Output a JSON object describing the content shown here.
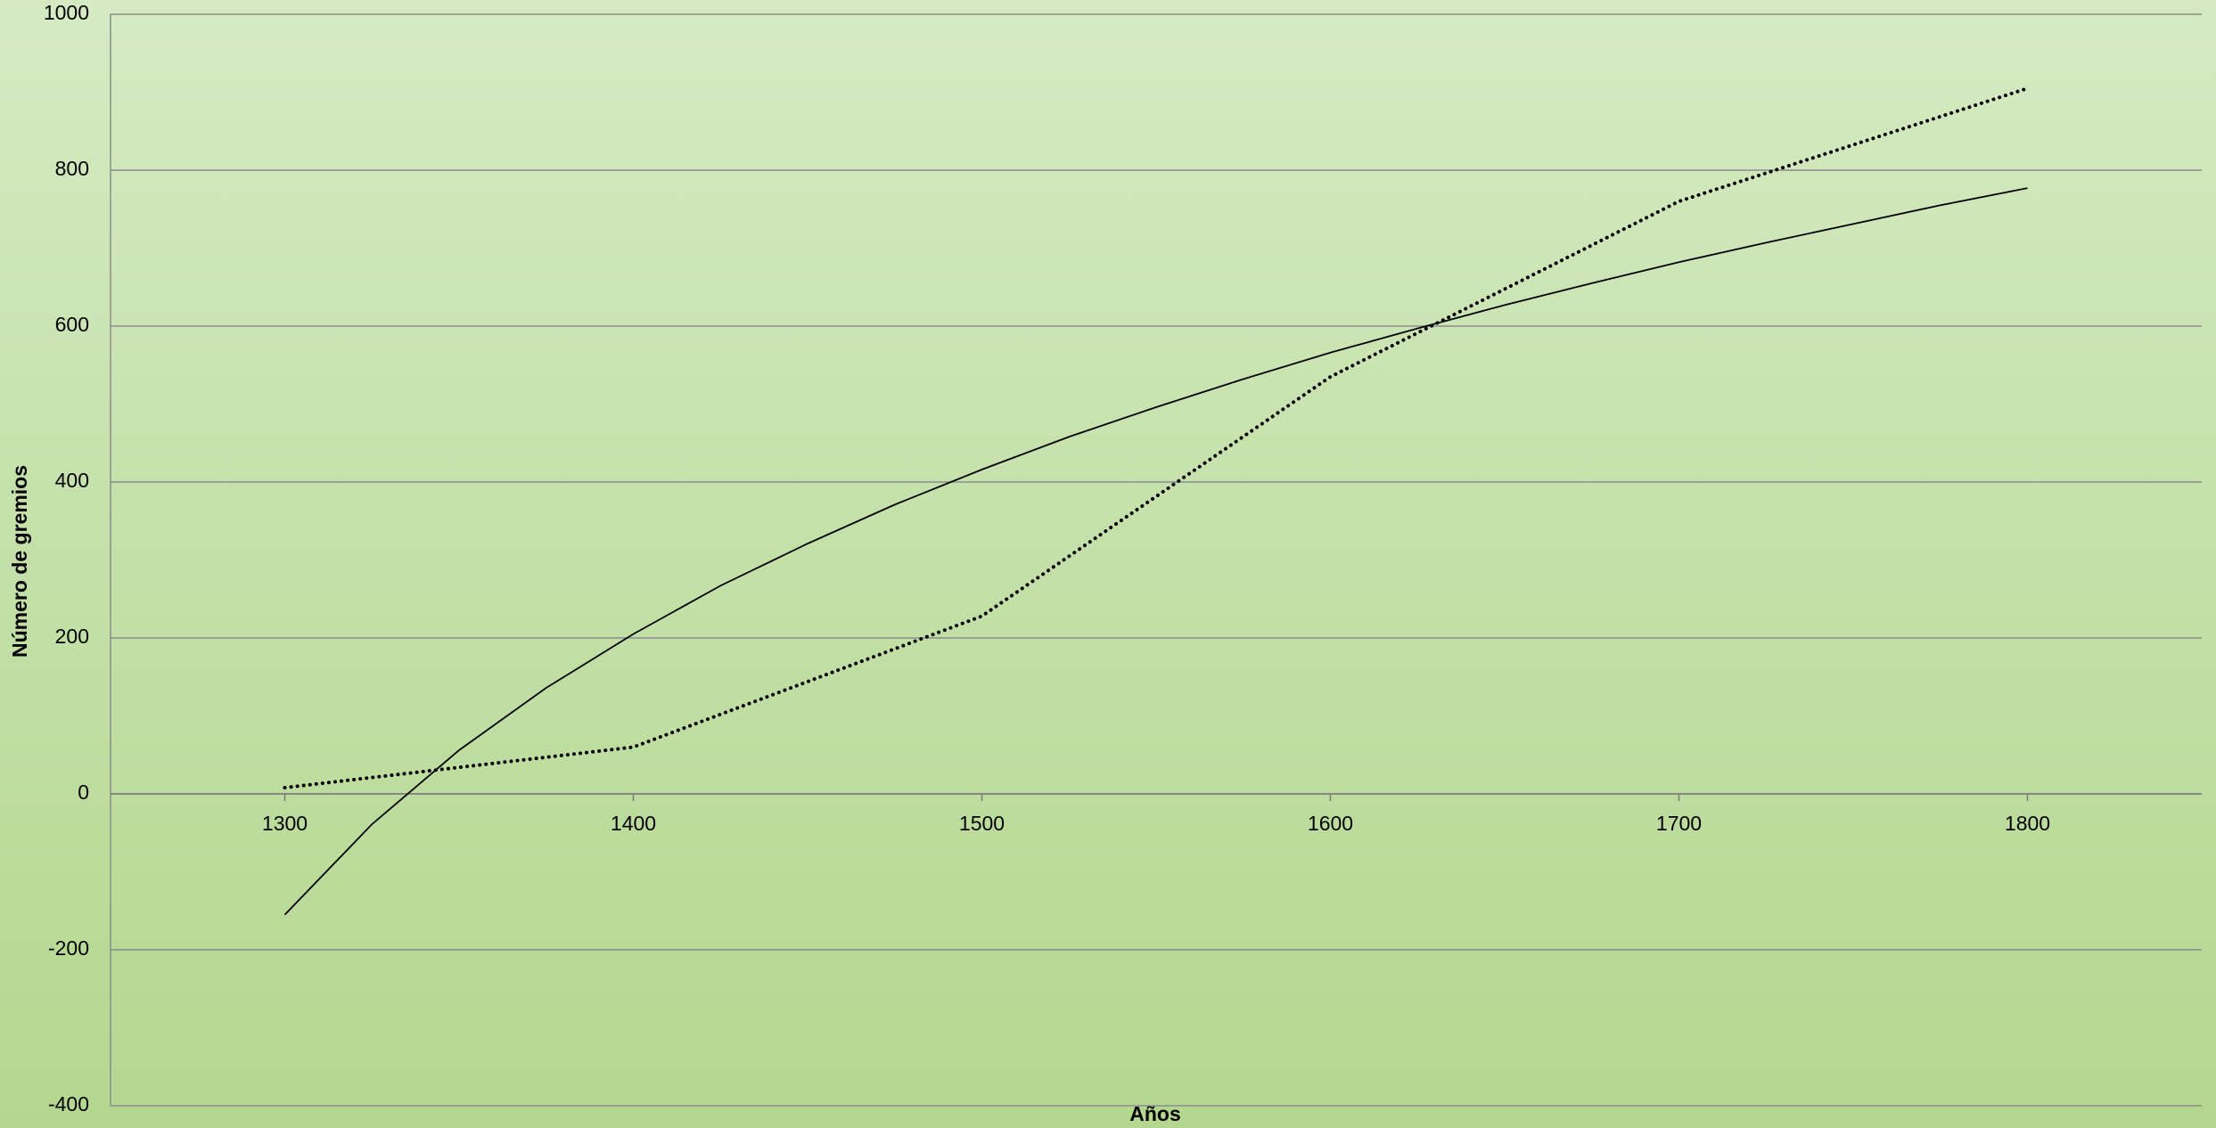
{
  "chart_data": {
    "type": "line",
    "x_label": "Años",
    "y_label": "Número de gremios",
    "x": [
      1300,
      1400,
      1500,
      1600,
      1700,
      1800
    ],
    "series": [
      {
        "color": "#000000",
        "style": "dotted",
        "values": [
          8,
          60,
          228,
          535,
          760,
          905
        ]
      },
      {
        "color": "#000000",
        "style": "solid",
        "x": [
          1300,
          1325,
          1350,
          1375,
          1400,
          1425,
          1450,
          1475,
          1500,
          1525,
          1550,
          1575,
          1600,
          1625,
          1650,
          1675,
          1700,
          1725,
          1750,
          1775,
          1800
        ],
        "values": [
          -155,
          -39,
          56,
          136,
          205,
          267,
          321,
          371,
          416,
          458,
          496,
          532,
          566,
          597,
          627,
          655,
          682,
          707,
          731,
          755,
          777
        ]
      }
    ],
    "xlim": [
      1250,
      1850
    ],
    "xticks": [
      1300,
      1400,
      1500,
      1600,
      1700,
      1800
    ],
    "ylim": [
      -400,
      1000
    ],
    "yticks": [
      -400,
      -200,
      0,
      200,
      400,
      600,
      800,
      1000
    ],
    "grid": true
  }
}
